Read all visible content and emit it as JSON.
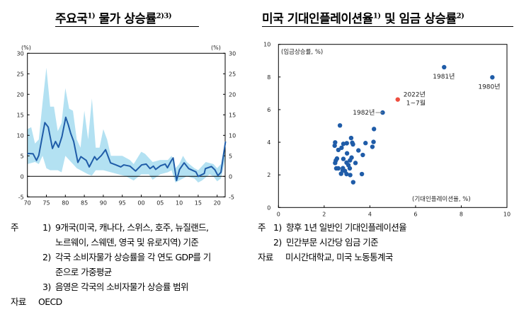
{
  "left_title": {
    "text": "주요국",
    "sup1": "1)",
    "text2": "물가 상승률",
    "sup2": "2)3)"
  },
  "right_title": {
    "text": "미국 기대인플레이션율",
    "sup1": "1)",
    "text2": "및 임금 상승률",
    "sup2": "2)"
  },
  "chart_data": [
    {
      "type": "line",
      "unit_left": "(%)",
      "unit_right": "(%)",
      "xlim": [
        1970,
        2022.2
      ],
      "ylim": [
        -5,
        30
      ],
      "x_ticks": [
        "70",
        "75",
        "80",
        "85",
        "90",
        "95",
        "00",
        "05",
        "10",
        "15",
        "20"
      ],
      "x_tick_values": [
        1970,
        1975,
        1980,
        1985,
        1990,
        1995,
        2000,
        2005,
        2010,
        2015,
        2020
      ],
      "y_ticks": [
        30,
        25,
        20,
        15,
        10,
        5,
        0,
        -5
      ],
      "colors": {
        "line": "#1f5ca8",
        "band": "#b3e1f2"
      },
      "series": [
        {
          "x": [
            1970,
            1971.5,
            1972.4,
            1973,
            1974.6,
            1975.5,
            1976.6,
            1977.4,
            1978.2,
            1979.1,
            1980.1,
            1980.8,
            1981.4,
            1982.2,
            1983.3,
            1984.1,
            1985.5,
            1986.3,
            1987.7,
            1988.3,
            1989.5,
            1990.6,
            1991.9,
            1993.3,
            1994.6,
            1995.4,
            1997,
            1998.5,
            2000.1,
            2001.3,
            2002.3,
            2003.2,
            2003.8,
            2005.1,
            2006.3,
            2006.9,
            2007.9,
            2008.4,
            2009.3,
            2010.1,
            2011.3,
            2012.5,
            2014.4,
            2015,
            2016.6,
            2016.9,
            2018.5,
            2019.4,
            2020.2,
            2021,
            2022.2
          ],
          "y": [
            5.6,
            5.5,
            3.9,
            5.1,
            13.1,
            12,
            6.8,
            8.5,
            7.1,
            9.7,
            14.4,
            12.5,
            10.5,
            8.5,
            3.4,
            4.8,
            3.9,
            2.3,
            4.8,
            4,
            5.1,
            6.5,
            3.3,
            2.8,
            2.3,
            2.8,
            2.5,
            1.3,
            2.8,
            3,
            1.9,
            2.5,
            1.7,
            2.6,
            3,
            2.1,
            3.8,
            4.5,
            -1,
            1.7,
            3.3,
            1.9,
            1.1,
            0,
            0.7,
            1.9,
            2.4,
            1.6,
            0.2,
            1,
            8.5
          ]
        }
      ],
      "band": {
        "upper": {
          "x": [
            1970,
            1971,
            1972,
            1973,
            1974,
            1975,
            1976,
            1977,
            1978,
            1979,
            1980,
            1981,
            1982,
            1983,
            1984,
            1985,
            1986,
            1987,
            1988,
            1989,
            1990,
            1991,
            1992,
            1993,
            1995,
            1997,
            1998,
            2000,
            2001,
            2003,
            2005,
            2007,
            2008,
            2009,
            2010,
            2011,
            2012,
            2014,
            2015,
            2017,
            2019,
            2020,
            2021,
            2022.2
          ],
          "y": [
            11.5,
            12,
            8,
            9,
            18,
            26.5,
            17,
            17,
            11,
            13,
            21.5,
            16.5,
            16,
            9,
            7,
            16,
            9,
            19,
            7,
            7,
            11.5,
            9,
            5,
            5,
            5,
            4,
            3,
            6,
            5.5,
            3.5,
            4,
            4,
            5,
            2,
            3,
            5,
            3.5,
            2,
            1.5,
            3.5,
            3,
            2,
            3,
            9
          ]
        },
        "lower": {
          "x": [
            1970,
            1972,
            1973,
            1974,
            1975,
            1976,
            1978,
            1979,
            1980,
            1981,
            1982,
            1983,
            1984,
            1986,
            1987,
            1988,
            1990,
            1992,
            1994,
            1996,
            1998,
            2000,
            2002,
            2003,
            2005,
            2007,
            2008,
            2009,
            2010,
            2012,
            2014,
            2015,
            2016,
            2018,
            2019,
            2020,
            2021,
            2022.2
          ],
          "y": [
            3,
            3.5,
            3,
            5,
            2,
            1.5,
            1.5,
            1,
            5,
            4,
            3,
            2,
            1.5,
            0.5,
            0.2,
            1.5,
            1.5,
            1,
            0.5,
            0,
            -1,
            0.5,
            0.5,
            -0.8,
            0.5,
            1,
            1.5,
            -1.5,
            -1,
            0,
            -0.5,
            -1.5,
            -1,
            0.5,
            0,
            -1.2,
            -0.5,
            4.5
          ]
        }
      }
    },
    {
      "type": "scatter",
      "xlabel": "(기대인플레이션율, %)",
      "ylabel": "(임금상승률, %)",
      "xlim": [
        0,
        10
      ],
      "ylim": [
        0,
        10
      ],
      "x_ticks": [
        0,
        2,
        4,
        6,
        8,
        10
      ],
      "y_ticks": [
        0,
        2,
        4,
        6,
        8,
        10
      ],
      "colors": {
        "point": "#1f5ca8",
        "highlight": "#ee4e3f"
      },
      "annotations": [
        {
          "label": "1981년",
          "x": 7.25,
          "y": 8.6
        },
        {
          "label": "1980년",
          "x": 9.36,
          "y": 7.98
        },
        {
          "label": "2022년",
          "label2": "1~7월",
          "x": 5.22,
          "y": 6.62,
          "highlight": true
        },
        {
          "label": "1982년",
          "x": 4.56,
          "y": 5.82
        }
      ],
      "points": [
        [
          2.69,
          5.03
        ],
        [
          4.18,
          4.81
        ],
        [
          3.18,
          4.26
        ],
        [
          2.48,
          3.99
        ],
        [
          4.16,
          4.02
        ],
        [
          3.81,
          3.95
        ],
        [
          3.23,
          3.97
        ],
        [
          2.99,
          3.94
        ],
        [
          2.84,
          3.9
        ],
        [
          2.46,
          3.79
        ],
        [
          3.26,
          3.87
        ],
        [
          4.11,
          3.72
        ],
        [
          2.76,
          3.66
        ],
        [
          2.62,
          3.53
        ],
        [
          3.5,
          3.5
        ],
        [
          3.0,
          3.32
        ],
        [
          3.69,
          3.22
        ],
        [
          3.2,
          3.06
        ],
        [
          2.56,
          3.0
        ],
        [
          2.84,
          2.98
        ],
        [
          3.13,
          2.89
        ],
        [
          2.51,
          2.88
        ],
        [
          3.37,
          2.73
        ],
        [
          2.98,
          2.75
        ],
        [
          2.48,
          2.73
        ],
        [
          3.06,
          2.6
        ],
        [
          2.53,
          2.4
        ],
        [
          2.62,
          2.4
        ],
        [
          2.82,
          2.41
        ],
        [
          3.12,
          2.4
        ],
        [
          2.81,
          2.28
        ],
        [
          2.91,
          2.24
        ],
        [
          2.74,
          2.07
        ],
        [
          2.98,
          2.05
        ],
        [
          3.14,
          1.99
        ],
        [
          3.65,
          2.05
        ],
        [
          3.27,
          1.55
        ]
      ]
    }
  ],
  "left_notes": [
    {
      "prefix": "주",
      "num": "1)",
      "text": "9개국(미국, 캐나다, 스위스, 호주, 뉴질랜드,"
    },
    {
      "text": "노르웨이, 스웨덴, 영국 및 유로지역) 기준"
    },
    {
      "num": "2)",
      "text": "각국 소비자물가 상승률을 각 연도 GDP를 기"
    },
    {
      "text": "준으로 가중평균"
    },
    {
      "num": "3)",
      "text": "음영은 각국의 소비자물가 상승률 범위"
    },
    {
      "prefix": "자료",
      "text": "OECD"
    }
  ],
  "right_notes": [
    {
      "prefix": "주",
      "num": "1)",
      "text": "향후 1년 일반인 기대인플레이션율"
    },
    {
      "num": "2)",
      "text": "민간부문 시간당 임금 기준"
    },
    {
      "prefix": "자료",
      "text": "미시간대학교, 미국 노동통계국"
    }
  ]
}
